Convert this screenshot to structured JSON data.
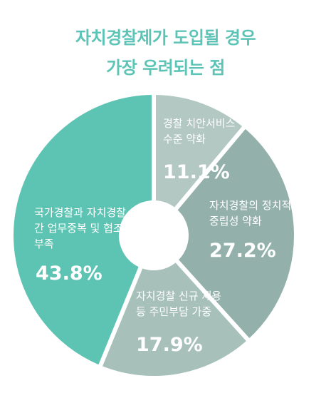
{
  "title_line1": "자치경찰제가 도입될 경우",
  "title_line2": "가장 우려되는 점",
  "chart_data": {
    "type": "pie",
    "donut": true,
    "unit": "%",
    "slices": [
      {
        "label": [
          "경찰 치안서비스",
          "수준 약화"
        ],
        "value": 11.1,
        "display": "11.1%",
        "color": "#b3c8c3"
      },
      {
        "label": [
          "자치경찰의 정치적",
          "중립성 약화"
        ],
        "value": 27.2,
        "display": "27.2%",
        "color": "#93b1aa"
      },
      {
        "label": [
          "자치경찰 신규 채용",
          "등 주민부담 가중"
        ],
        "value": 17.9,
        "display": "17.9%",
        "color": "#a7c0ba"
      },
      {
        "label": [
          "국가경찰과 자치경찰",
          "간 업무중복 및 협조",
          "부족"
        ],
        "value": 43.8,
        "display": "43.8%",
        "color": "#5dc4b3"
      }
    ]
  }
}
